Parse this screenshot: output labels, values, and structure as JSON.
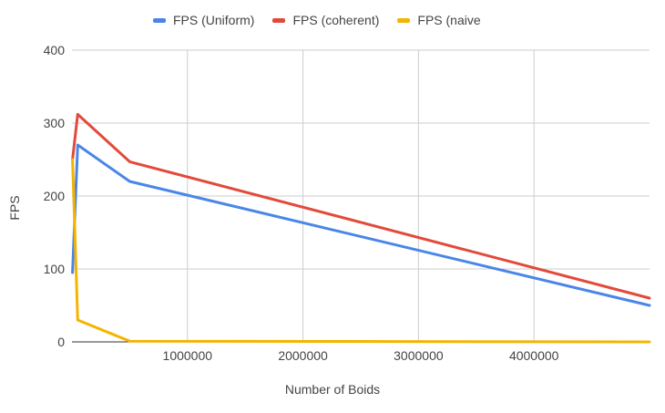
{
  "chart_data": {
    "type": "line",
    "title": "",
    "xlabel": "Number of Boids",
    "ylabel": "FPS",
    "xlim": [
      0,
      5000000
    ],
    "ylim": [
      0,
      400
    ],
    "x_ticks": [
      "1000000",
      "2000000",
      "3000000",
      "4000000"
    ],
    "y_ticks": [
      "0",
      "100",
      "200",
      "300",
      "400"
    ],
    "grid": true,
    "legend_position": "top",
    "series": [
      {
        "name": "FPS (Uniform)",
        "color": "#4a86e8",
        "points": [
          [
            5000,
            95
          ],
          [
            50000,
            270
          ],
          [
            500000,
            220
          ],
          [
            5000000,
            50
          ]
        ]
      },
      {
        "name": "FPS (coherent)",
        "color": "#e24a3b",
        "points": [
          [
            5000,
            250
          ],
          [
            50000,
            312
          ],
          [
            500000,
            247
          ],
          [
            5000000,
            60
          ]
        ]
      },
      {
        "name": "FPS (naive",
        "color": "#f4b400",
        "points": [
          [
            5000,
            250
          ],
          [
            50000,
            30
          ],
          [
            500000,
            1
          ],
          [
            5000000,
            0
          ]
        ]
      }
    ]
  }
}
